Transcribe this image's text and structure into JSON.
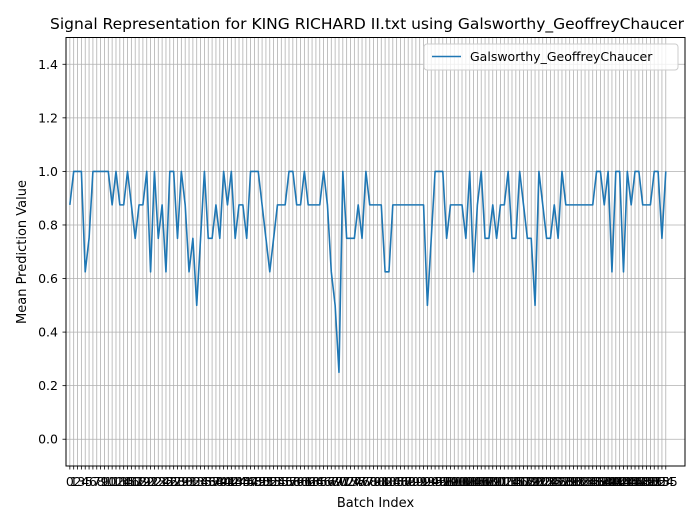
{
  "chart_data": {
    "type": "line",
    "title": "Signal Representation for KING RICHARD II.txt using Galsworthy_GeoffreyChaucer",
    "xlabel": "Batch Index",
    "ylabel": "Mean Prediction Value",
    "ylim": [
      -0.1,
      1.5
    ],
    "yticks": [
      "0.0",
      "0.2",
      "0.4",
      "0.6",
      "0.8",
      "1.0",
      "1.2",
      "1.4"
    ],
    "xlim": [
      -1,
      160
    ],
    "grid": true,
    "legend_position": "top-right",
    "series": [
      {
        "name": "Galsworthy_GeoffreyChaucer",
        "color": "#1f77b4",
        "values": [
          0.875,
          1,
          1,
          1,
          0.625,
          0.75,
          1,
          1,
          1,
          1,
          1,
          0.875,
          1,
          0.875,
          0.875,
          1,
          0.875,
          0.75,
          0.875,
          0.875,
          1,
          0.625,
          1,
          0.75,
          0.875,
          0.625,
          1,
          1,
          0.75,
          1,
          0.875,
          0.625,
          0.75,
          0.5,
          0.75,
          1,
          0.75,
          0.75,
          0.875,
          0.75,
          1,
          0.875,
          1,
          0.75,
          0.875,
          0.875,
          0.75,
          1,
          1,
          1,
          0.875,
          0.75,
          0.625,
          0.75,
          0.875,
          0.875,
          0.875,
          1,
          1,
          0.875,
          0.875,
          1,
          0.875,
          0.875,
          0.875,
          0.875,
          1,
          0.875,
          0.625,
          0.5,
          0.25,
          1,
          0.75,
          0.75,
          0.75,
          0.875,
          0.75,
          1,
          0.875,
          0.875,
          0.875,
          0.875,
          0.625,
          0.625,
          0.875,
          0.875,
          0.875,
          0.875,
          0.875,
          0.875,
          0.875,
          0.875,
          0.875,
          0.5,
          0.75,
          1,
          1,
          1,
          0.75,
          0.875,
          0.875,
          0.875,
          0.875,
          0.75,
          1,
          0.625,
          0.875,
          1,
          0.75,
          0.75,
          0.875,
          0.75,
          0.875,
          0.875,
          1,
          0.75,
          0.75,
          1,
          0.875,
          0.75,
          0.75,
          0.5,
          1,
          0.875,
          0.75,
          0.75,
          0.875,
          0.75,
          1,
          0.875,
          0.875,
          0.875,
          0.875,
          0.875,
          0.875,
          0.875,
          0.875,
          1,
          1,
          0.875,
          1,
          0.625,
          1,
          1,
          0.625,
          1,
          0.875,
          1,
          1,
          0.875,
          0.875,
          0.875,
          1,
          1,
          0.75,
          1
        ]
      }
    ]
  }
}
